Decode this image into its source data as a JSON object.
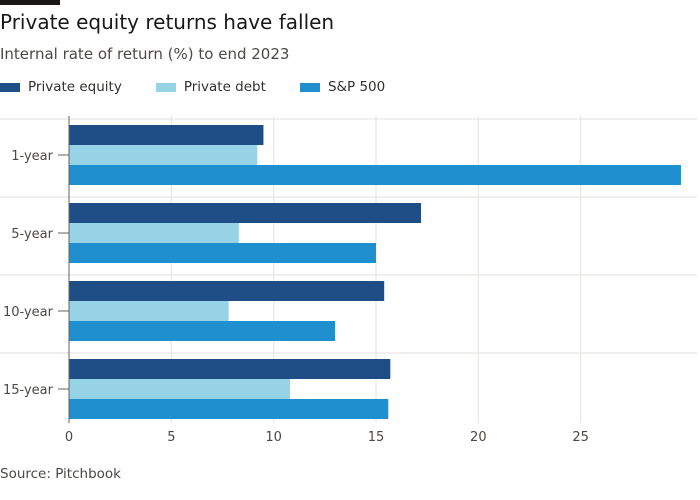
{
  "chart_data": {
    "type": "bar",
    "orientation": "horizontal",
    "title": "Private equity returns have fallen",
    "subtitle": "Internal rate of return (%) to end 2023",
    "categories": [
      "1-year",
      "5-year",
      "10-year",
      "15-year"
    ],
    "series": [
      {
        "name": "Private equity",
        "color": "#1f4e87",
        "values": [
          9.5,
          17.2,
          15.4,
          15.7
        ]
      },
      {
        "name": "Private debt",
        "color": "#96d3e6",
        "values": [
          9.2,
          8.3,
          7.8,
          10.8
        ]
      },
      {
        "name": "S&P 500",
        "color": "#1f8fcf",
        "values": [
          29.9,
          15.0,
          13.0,
          15.6
        ]
      }
    ],
    "xticks": [
      0,
      5,
      10,
      15,
      20,
      25
    ],
    "xlim": [
      0,
      30
    ],
    "xlabel": "",
    "ylabel": "",
    "grid": true,
    "legend_position": "top-left"
  },
  "source": "Source: Pitchbook"
}
